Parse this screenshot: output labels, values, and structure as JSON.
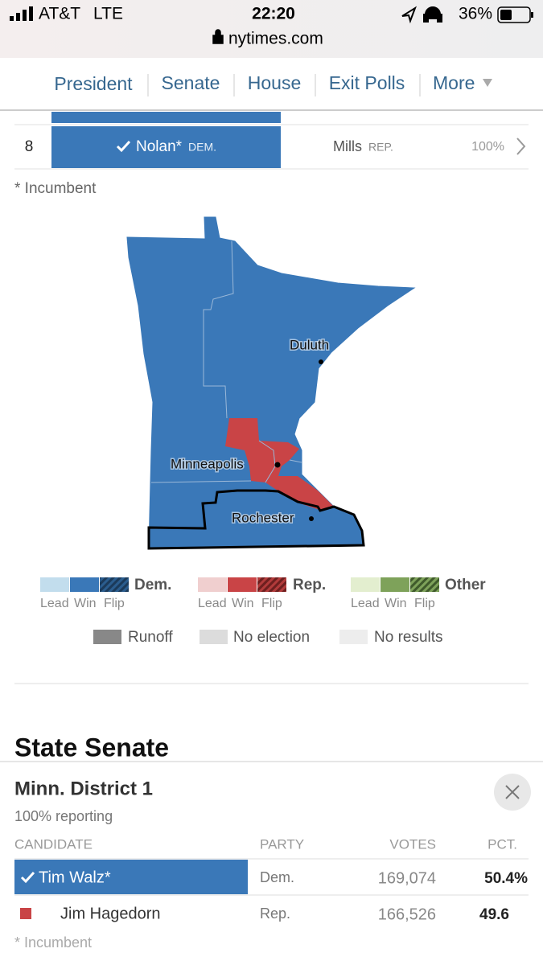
{
  "status_bar": {
    "carrier": "AT&T",
    "network": "LTE",
    "time": "22:20",
    "battery": "36%"
  },
  "url": "nytimes.com",
  "nav": [
    "President",
    "Senate",
    "House",
    "Exit Polls",
    "More"
  ],
  "results_row": {
    "district": "8",
    "winner": "Nolan*",
    "winner_party": "DEM.",
    "loser": "Mills",
    "loser_party": "REP.",
    "reporting": "100%"
  },
  "incumbent_note": "* Incumbent",
  "map": {
    "cities": [
      "Duluth",
      "Minneapolis",
      "Rochester"
    ]
  },
  "legend": {
    "groups": [
      {
        "label": "Dem.",
        "items": [
          "Lead",
          "Win",
          "Flip"
        ]
      },
      {
        "label": "Rep.",
        "items": [
          "Lead",
          "Win",
          "Flip"
        ]
      },
      {
        "label": "Other",
        "items": [
          "Lead",
          "Win",
          "Flip"
        ]
      }
    ],
    "extras": [
      "Runoff",
      "No election",
      "No results"
    ]
  },
  "section_title": "State Senate",
  "popup": {
    "title": "Minn. District 1",
    "reporting": "100% reporting",
    "columns": [
      "CANDIDATE",
      "PARTY",
      "VOTES",
      "PCT."
    ],
    "rows": [
      [
        "Tim Walz*",
        "Dem.",
        "169,074",
        "50.4%"
      ],
      [
        "Jim Hagedorn",
        "Rep.",
        "166,526",
        "49.6"
      ]
    ],
    "note": "* Incumbent"
  }
}
